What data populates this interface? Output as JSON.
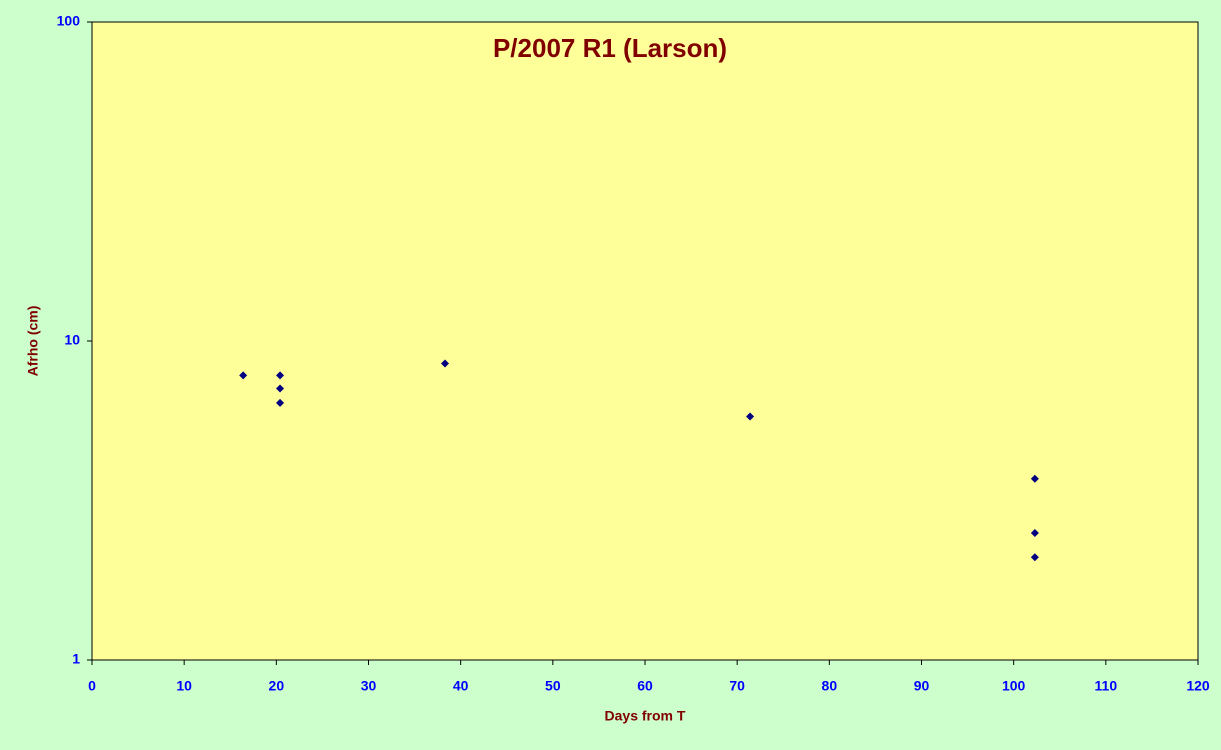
{
  "chart_data": {
    "type": "scatter",
    "title": "P/2007 R1 (Larson)",
    "x_label": "Days from T",
    "y_label": "Afrho (cm)",
    "series": [
      {
        "color": "#000080",
        "x": [
          16.4,
          20.4,
          20.4,
          20.4,
          38.3,
          71.4,
          102.3,
          102.3,
          102.3
        ],
        "values": [
          7.8,
          7.8,
          7.1,
          6.4,
          8.5,
          5.8,
          3.7,
          2.5,
          2.1
        ]
      }
    ],
    "xlim": [
      0,
      120
    ],
    "xticks": [
      0,
      10,
      20,
      30,
      40,
      50,
      60,
      70,
      80,
      90,
      100,
      110,
      120
    ],
    "ylim": [
      1,
      100
    ],
    "yticks": [
      1,
      10,
      100
    ],
    "log_y": true,
    "grid": false,
    "background": "#ccffcc",
    "plot_background": "#ffff99"
  }
}
